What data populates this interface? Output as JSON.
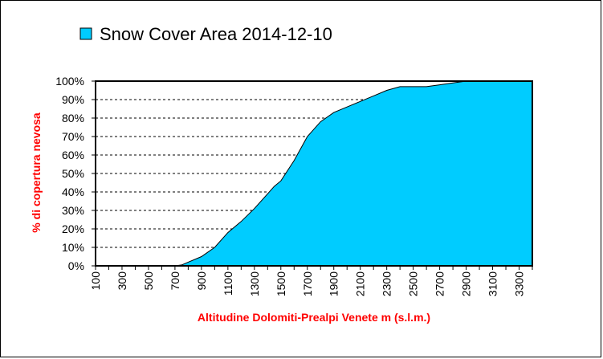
{
  "chart_data": {
    "type": "area",
    "legend": {
      "label": "Snow Cover Area 2014-12-10",
      "position": "top-left"
    },
    "xlabel": "Altitudine Dolomiti-Prealpi Venete m (s.l.m.)",
    "ylabel": "% di copertura nevosa",
    "xlim": [
      100,
      3400
    ],
    "ylim": [
      0,
      100
    ],
    "x_tick_labels": [
      "100",
      "300",
      "500",
      "700",
      "900",
      "1100",
      "1300",
      "1500",
      "1700",
      "1900",
      "2100",
      "2300",
      "2500",
      "2700",
      "2900",
      "3100",
      "3300"
    ],
    "y_tick_labels": [
      "0%",
      "10%",
      "20%",
      "30%",
      "40%",
      "50%",
      "60%",
      "70%",
      "80%",
      "90%",
      "100%"
    ],
    "grid": "horizontal dashed",
    "series": [
      {
        "name": "Snow Cover Area 2014-12-10",
        "color": "#00CCFF",
        "x": [
          100,
          200,
          300,
          400,
          500,
          600,
          700,
          750,
          800,
          900,
          1000,
          1100,
          1200,
          1300,
          1400,
          1450,
          1500,
          1600,
          1700,
          1800,
          1900,
          2000,
          2100,
          2200,
          2300,
          2400,
          2500,
          2600,
          2700,
          2800,
          2900,
          3000,
          3100,
          3200,
          3300,
          3400
        ],
        "y": [
          0,
          0,
          0,
          0,
          0,
          0,
          0,
          0.5,
          2,
          5,
          10,
          18,
          24,
          31,
          39,
          43,
          46,
          57,
          70,
          78,
          83,
          86,
          89,
          92,
          95,
          97,
          97,
          97,
          98,
          99,
          100,
          100,
          100,
          100,
          100,
          100
        ]
      }
    ],
    "colors": {
      "area": "#00CCFF",
      "axis_titles": "#FF0000",
      "grid": "#000000"
    }
  }
}
